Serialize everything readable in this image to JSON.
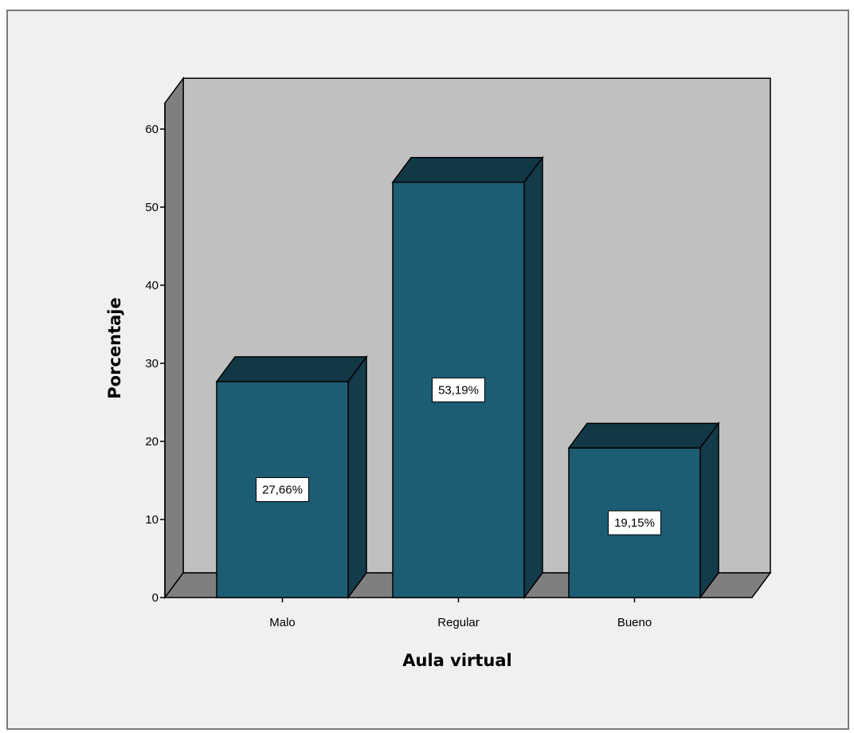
{
  "chart_data": {
    "type": "bar",
    "categories": [
      "Malo",
      "Regular",
      "Bueno"
    ],
    "values": [
      27.66,
      53.19,
      19.15
    ],
    "data_labels": [
      "27,66%",
      "53,19%",
      "19,15%"
    ],
    "xlabel": "Aula virtual",
    "ylabel": "Porcentaje",
    "ylim": [
      0,
      60
    ],
    "yticks": [
      "0",
      "10",
      "20",
      "30",
      "40",
      "50",
      "60"
    ],
    "grid": false,
    "style": "3d",
    "colors": {
      "bar_front": "#1c5d74",
      "bar_top": "#123846",
      "bar_side": "#133b4a",
      "back_wall": "#c0c0c0",
      "floor": "#7f7f7f",
      "side_wall": "#7f7f7f"
    }
  }
}
